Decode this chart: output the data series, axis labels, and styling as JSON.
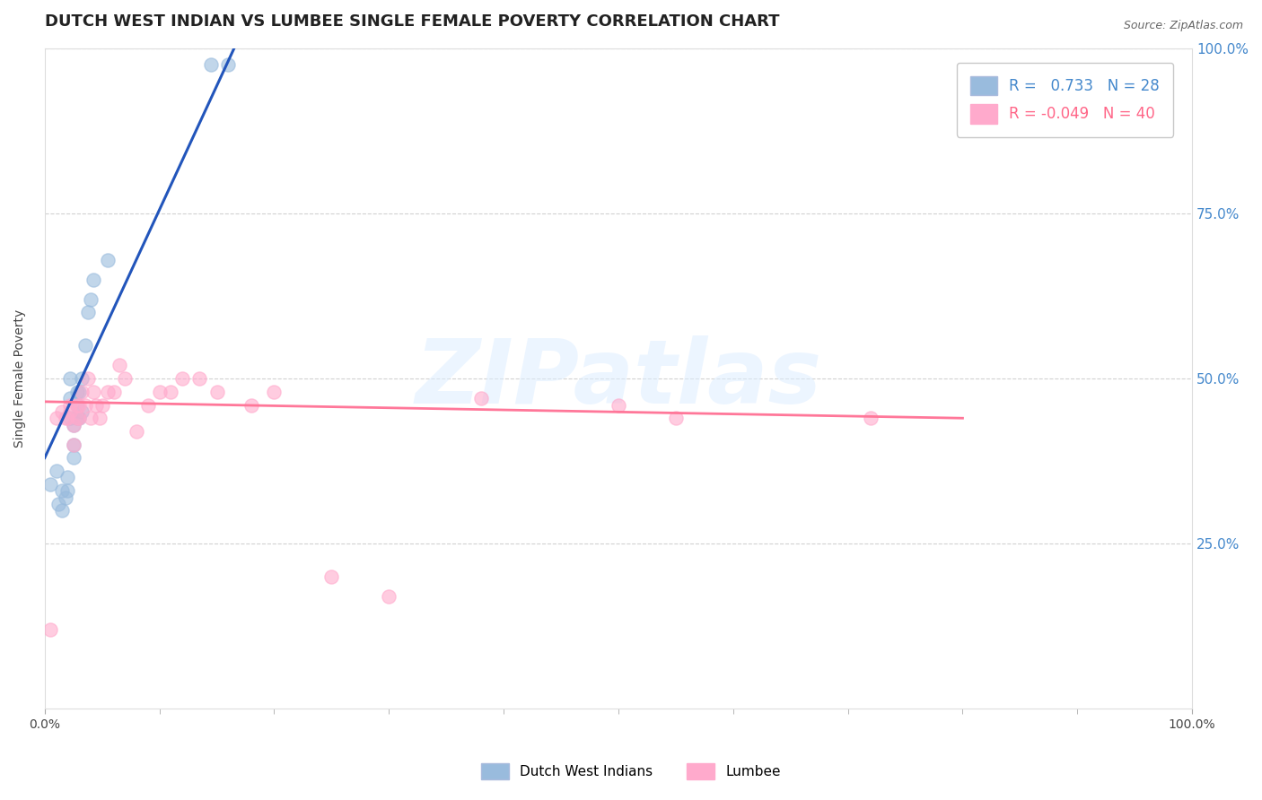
{
  "title": "DUTCH WEST INDIAN VS LUMBEE SINGLE FEMALE POVERTY CORRELATION CHART",
  "source": "Source: ZipAtlas.com",
  "ylabel": "Single Female Poverty",
  "watermark": "ZIPatlas",
  "legend_blue_R": "0.733",
  "legend_blue_N": "28",
  "legend_pink_R": "-0.049",
  "legend_pink_N": "40",
  "blue_label": "Dutch West Indians",
  "pink_label": "Lumbee",
  "xlim": [
    0.0,
    1.0
  ],
  "ylim": [
    0.0,
    1.0
  ],
  "xtick_labels": [
    "0.0%",
    "100.0%"
  ],
  "ytick_labels_right": [
    "25.0%",
    "50.0%",
    "75.0%",
    "100.0%"
  ],
  "blue_color": "#99BBDD",
  "pink_color": "#FFAACC",
  "blue_line_color": "#2255BB",
  "pink_line_color": "#FF7799",
  "blue_scatter_x": [
    0.005,
    0.01,
    0.012,
    0.015,
    0.015,
    0.018,
    0.02,
    0.02,
    0.022,
    0.022,
    0.022,
    0.025,
    0.025,
    0.025,
    0.028,
    0.028,
    0.028,
    0.03,
    0.03,
    0.032,
    0.032,
    0.035,
    0.038,
    0.04,
    0.042,
    0.055,
    0.145,
    0.16
  ],
  "blue_scatter_y": [
    0.34,
    0.36,
    0.31,
    0.3,
    0.33,
    0.32,
    0.35,
    0.33,
    0.44,
    0.47,
    0.5,
    0.38,
    0.4,
    0.43,
    0.44,
    0.46,
    0.48,
    0.44,
    0.48,
    0.45,
    0.5,
    0.55,
    0.6,
    0.62,
    0.65,
    0.68,
    0.975,
    0.975
  ],
  "pink_scatter_x": [
    0.005,
    0.01,
    0.015,
    0.018,
    0.02,
    0.022,
    0.022,
    0.025,
    0.025,
    0.028,
    0.028,
    0.03,
    0.03,
    0.032,
    0.035,
    0.038,
    0.04,
    0.042,
    0.045,
    0.048,
    0.05,
    0.055,
    0.06,
    0.065,
    0.07,
    0.08,
    0.09,
    0.1,
    0.11,
    0.12,
    0.135,
    0.15,
    0.18,
    0.2,
    0.25,
    0.3,
    0.38,
    0.5,
    0.55,
    0.72
  ],
  "pink_scatter_y": [
    0.12,
    0.44,
    0.45,
    0.44,
    0.44,
    0.45,
    0.46,
    0.4,
    0.43,
    0.44,
    0.46,
    0.44,
    0.46,
    0.48,
    0.46,
    0.5,
    0.44,
    0.48,
    0.46,
    0.44,
    0.46,
    0.48,
    0.48,
    0.52,
    0.5,
    0.42,
    0.46,
    0.48,
    0.48,
    0.5,
    0.5,
    0.48,
    0.46,
    0.48,
    0.2,
    0.17,
    0.47,
    0.46,
    0.44,
    0.44
  ],
  "blue_line_x": [
    0.0,
    0.165
  ],
  "blue_line_y": [
    0.38,
    1.0
  ],
  "pink_line_x": [
    0.0,
    0.8
  ],
  "pink_line_y": [
    0.465,
    0.44
  ],
  "grid_color": "#CCCCCC",
  "background_color": "#FFFFFF",
  "title_fontsize": 13,
  "axis_fontsize": 10,
  "legend_fontsize": 12
}
